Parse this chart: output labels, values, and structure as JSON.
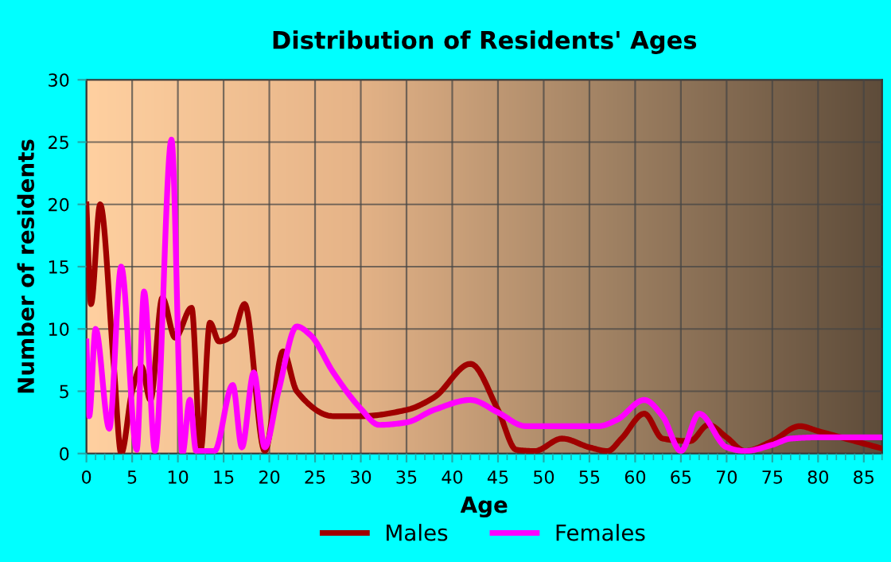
{
  "chart_data": {
    "type": "line",
    "title": "Distribution of Residents' Ages",
    "xlabel": "Age",
    "ylabel": "Number of residents",
    "xlim": [
      0,
      87
    ],
    "xticks": [
      0,
      5,
      10,
      15,
      20,
      25,
      30,
      35,
      40,
      45,
      50,
      55,
      60,
      65,
      70,
      75,
      80,
      85
    ],
    "ylim": [
      0,
      30
    ],
    "yticks": [
      0,
      5,
      10,
      15,
      20,
      25,
      30
    ],
    "grid": true,
    "legend": "bottom",
    "marker": "none",
    "line_style": "solid",
    "series": [
      {
        "name": "Males",
        "color": "#a00000",
        "x": [
          0,
          0.5,
          1.5,
          3,
          3.8,
          5,
          6,
          7,
          8.3,
          9.7,
          11.5,
          12.5,
          13.5,
          14.5,
          16,
          17.3,
          19.5,
          21.5,
          23,
          27,
          30,
          35,
          38,
          42,
          45,
          47,
          49,
          52,
          55,
          57,
          58.5,
          61,
          63,
          66,
          68,
          70,
          72,
          75,
          78,
          80,
          87
        ],
        "values": [
          20,
          12,
          20,
          7,
          0,
          5,
          7,
          4.3,
          12.5,
          9.3,
          11.7,
          0.3,
          10.5,
          9,
          9.5,
          12,
          0.2,
          8.2,
          5,
          3,
          3,
          3.5,
          4.5,
          7.2,
          3.5,
          0.3,
          0.2,
          1.2,
          0.5,
          0.2,
          1.2,
          3.2,
          1.2,
          1,
          2.3,
          1.3,
          0.2,
          1,
          2.2,
          1.8,
          0.4
        ]
      },
      {
        "name": "Females",
        "color": "#ff00ff",
        "x": [
          0,
          0.3,
          1,
          2.5,
          3.8,
          5.5,
          6.3,
          7.5,
          9.3,
          10.5,
          11.3,
          12,
          13,
          14,
          16,
          17,
          18.3,
          19.5,
          21,
          23,
          24.5,
          27,
          30,
          32,
          35,
          38,
          42,
          45,
          48,
          52,
          56,
          58,
          61,
          63,
          65,
          67,
          70,
          72,
          75,
          77,
          80,
          87
        ],
        "values": [
          9,
          3,
          10,
          2,
          15,
          0.3,
          13,
          0.2,
          25.2,
          0,
          4.3,
          0.2,
          0.2,
          0.2,
          5.5,
          0.5,
          6.5,
          0.5,
          5,
          10.2,
          9.5,
          6.5,
          3.6,
          2.3,
          2.5,
          3.5,
          4.3,
          3.3,
          2.2,
          2.2,
          2.2,
          2.7,
          4.3,
          3,
          0.2,
          3.2,
          0.5,
          0.2,
          0.7,
          1.2,
          1.3,
          1.3
        ]
      }
    ]
  }
}
